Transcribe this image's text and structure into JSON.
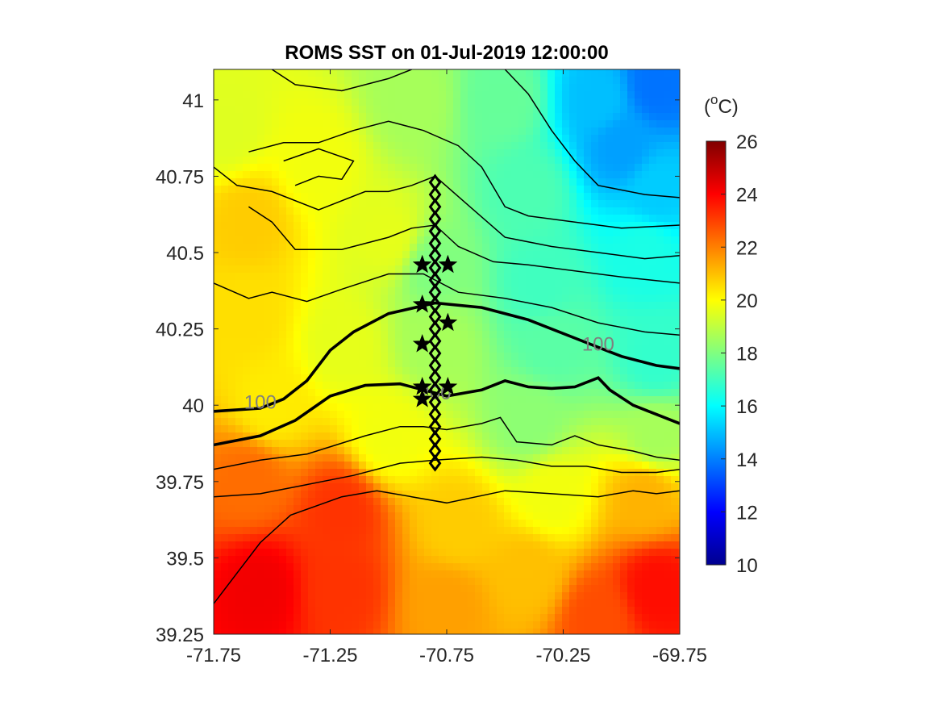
{
  "chart_data": {
    "type": "heatmap",
    "title": "ROMS SST on 01-Jul-2019 12:00:00",
    "xlabel": "",
    "ylabel": "",
    "xlim": [
      -71.75,
      -69.75
    ],
    "ylim": [
      39.25,
      41.1
    ],
    "xticks": [
      "-71.75",
      "-71.25",
      "-70.75",
      "-70.25",
      "-69.75"
    ],
    "yticks": [
      "39.25",
      "39.5",
      "39.75",
      "40",
      "40.25",
      "40.5",
      "40.75",
      "41"
    ],
    "colorbar": {
      "label": "(°C)",
      "label_base": "(",
      "label_sup": "o",
      "label_rest": "C)",
      "min": 10,
      "max": 26,
      "ticks": [
        "10",
        "12",
        "14",
        "16",
        "18",
        "20",
        "22",
        "24",
        "26"
      ],
      "colormap": "jet",
      "colors": [
        "#00008f",
        "#0000ff",
        "#0080ff",
        "#00ffff",
        "#80ff80",
        "#ffff00",
        "#ff8000",
        "#ff0000",
        "#800000"
      ]
    },
    "field_anchors": [
      {
        "lon": -71.7,
        "lat": 40.9,
        "sst": 19.5
      },
      {
        "lon": -71.6,
        "lat": 40.6,
        "sst": 20.8
      },
      {
        "lon": -71.6,
        "lat": 40.3,
        "sst": 20.5
      },
      {
        "lon": -71.3,
        "lat": 40.8,
        "sst": 19.8
      },
      {
        "lon": -71.0,
        "lat": 40.55,
        "sst": 19.6
      },
      {
        "lon": -70.9,
        "lat": 41.0,
        "sst": 18.6
      },
      {
        "lon": -70.5,
        "lat": 41.0,
        "sst": 17.6
      },
      {
        "lon": -70.1,
        "lat": 41.0,
        "sst": 15.0
      },
      {
        "lon": -69.85,
        "lat": 41.05,
        "sst": 13.8
      },
      {
        "lon": -70.0,
        "lat": 40.85,
        "sst": 14.5
      },
      {
        "lon": -69.85,
        "lat": 40.7,
        "sst": 15.2
      },
      {
        "lon": -70.4,
        "lat": 40.7,
        "sst": 17.2
      },
      {
        "lon": -69.9,
        "lat": 40.5,
        "sst": 16.4
      },
      {
        "lon": -70.35,
        "lat": 40.4,
        "sst": 17.0
      },
      {
        "lon": -70.8,
        "lat": 40.45,
        "sst": 18.0
      },
      {
        "lon": -70.3,
        "lat": 40.2,
        "sst": 17.4
      },
      {
        "lon": -69.85,
        "lat": 40.15,
        "sst": 16.8
      },
      {
        "lon": -70.8,
        "lat": 40.2,
        "sst": 18.6
      },
      {
        "lon": -71.2,
        "lat": 40.2,
        "sst": 19.6
      },
      {
        "lon": -71.5,
        "lat": 40.0,
        "sst": 20.3
      },
      {
        "lon": -70.4,
        "lat": 39.95,
        "sst": 18.2
      },
      {
        "lon": -69.85,
        "lat": 39.9,
        "sst": 18.6
      },
      {
        "lon": -71.0,
        "lat": 39.9,
        "sst": 19.8
      },
      {
        "lon": -71.6,
        "lat": 39.75,
        "sst": 22.3
      },
      {
        "lon": -71.2,
        "lat": 39.65,
        "sst": 23.2
      },
      {
        "lon": -70.7,
        "lat": 39.6,
        "sst": 20.8
      },
      {
        "lon": -70.3,
        "lat": 39.7,
        "sst": 19.8
      },
      {
        "lon": -69.9,
        "lat": 39.7,
        "sst": 21.2
      },
      {
        "lon": -71.55,
        "lat": 39.4,
        "sst": 24.2
      },
      {
        "lon": -71.2,
        "lat": 39.4,
        "sst": 23.2
      },
      {
        "lon": -70.75,
        "lat": 39.35,
        "sst": 21.5
      },
      {
        "lon": -70.4,
        "lat": 39.45,
        "sst": 21.0
      },
      {
        "lon": -69.85,
        "lat": 39.4,
        "sst": 23.8
      },
      {
        "lon": -70.1,
        "lat": 39.3,
        "sst": 22.8
      }
    ],
    "bathymetry_contours": [
      {
        "depth": 100,
        "label": "100",
        "label_positions": [
          {
            "lon": -71.55,
            "lat": 40.01
          },
          {
            "lon": -70.1,
            "lat": 40.2
          }
        ],
        "points": [
          [
            -71.75,
            39.98
          ],
          [
            -71.55,
            39.99
          ],
          [
            -71.45,
            40.02
          ],
          [
            -71.35,
            40.08
          ],
          [
            -71.25,
            40.18
          ],
          [
            -71.15,
            40.24
          ],
          [
            -71.0,
            40.3
          ],
          [
            -70.8,
            40.335
          ],
          [
            -70.6,
            40.32
          ],
          [
            -70.4,
            40.28
          ],
          [
            -70.2,
            40.22
          ],
          [
            -70.0,
            40.16
          ],
          [
            -69.85,
            40.13
          ],
          [
            -69.75,
            40.12
          ]
        ]
      },
      {
        "depth": 200,
        "label": "200",
        "label_positions": [
          {
            "lon": -70.8,
            "lat": 40.04
          }
        ],
        "points": [
          [
            -71.75,
            39.87
          ],
          [
            -71.55,
            39.9
          ],
          [
            -71.4,
            39.95
          ],
          [
            -71.25,
            40.03
          ],
          [
            -71.1,
            40.065
          ],
          [
            -70.95,
            40.07
          ],
          [
            -70.85,
            40.05
          ],
          [
            -70.75,
            40.03
          ],
          [
            -70.6,
            40.05
          ],
          [
            -70.5,
            40.08
          ],
          [
            -70.4,
            40.06
          ],
          [
            -70.3,
            40.055
          ],
          [
            -70.2,
            40.06
          ],
          [
            -70.1,
            40.09
          ],
          [
            -70.05,
            40.05
          ],
          [
            -69.95,
            40.0
          ],
          [
            -69.85,
            39.97
          ],
          [
            -69.75,
            39.94
          ]
        ]
      }
    ],
    "minor_contours": [
      [
        [
          -71.5,
          41.1
        ],
        [
          -71.4,
          41.05
        ],
        [
          -71.2,
          41.03
        ],
        [
          -71.0,
          41.07
        ],
        [
          -70.9,
          41.1
        ]
      ],
      [
        [
          -70.5,
          41.1
        ],
        [
          -70.4,
          41.02
        ],
        [
          -70.3,
          40.9
        ],
        [
          -70.2,
          40.8
        ],
        [
          -70.1,
          40.72
        ],
        [
          -69.9,
          40.69
        ],
        [
          -69.75,
          40.68
        ]
      ],
      [
        [
          -71.6,
          40.83
        ],
        [
          -71.45,
          40.86
        ],
        [
          -71.3,
          40.86
        ],
        [
          -71.15,
          40.9
        ],
        [
          -71.0,
          40.93
        ],
        [
          -70.85,
          40.9
        ],
        [
          -70.7,
          40.85
        ],
        [
          -70.6,
          40.78
        ],
        [
          -70.5,
          40.65
        ],
        [
          -70.4,
          40.62
        ],
        [
          -70.2,
          40.6
        ],
        [
          -70.0,
          40.58
        ],
        [
          -69.75,
          40.59
        ]
      ],
      [
        [
          -71.75,
          40.78
        ],
        [
          -71.65,
          40.72
        ],
        [
          -71.5,
          40.7
        ],
        [
          -71.3,
          40.64
        ],
        [
          -71.1,
          40.7
        ],
        [
          -71.0,
          40.7
        ],
        [
          -70.9,
          40.72
        ],
        [
          -70.8,
          40.75
        ],
        [
          -70.65,
          40.65
        ],
        [
          -70.5,
          40.55
        ],
        [
          -70.3,
          40.52
        ],
        [
          -70.1,
          40.5
        ],
        [
          -69.9,
          40.48
        ],
        [
          -69.75,
          40.49
        ]
      ],
      [
        [
          -71.6,
          40.65
        ],
        [
          -71.5,
          40.6
        ],
        [
          -71.4,
          40.51
        ],
        [
          -71.2,
          40.51
        ],
        [
          -71.0,
          40.55
        ],
        [
          -70.9,
          40.58
        ],
        [
          -70.8,
          40.59
        ],
        [
          -70.7,
          40.52
        ],
        [
          -70.55,
          40.47
        ],
        [
          -70.4,
          40.46
        ],
        [
          -70.2,
          40.44
        ],
        [
          -70.0,
          40.42
        ],
        [
          -69.75,
          40.4
        ]
      ],
      [
        [
          -71.75,
          40.4
        ],
        [
          -71.6,
          40.35
        ],
        [
          -71.5,
          40.37
        ],
        [
          -71.35,
          40.34
        ],
        [
          -71.2,
          40.38
        ],
        [
          -71.0,
          40.43
        ],
        [
          -70.85,
          40.43
        ],
        [
          -70.7,
          40.37
        ],
        [
          -70.5,
          40.35
        ],
        [
          -70.3,
          40.32
        ],
        [
          -70.1,
          40.27
        ],
        [
          -69.9,
          40.24
        ],
        [
          -69.75,
          40.23
        ]
      ],
      [
        [
          -71.75,
          39.79
        ],
        [
          -71.55,
          39.82
        ],
        [
          -71.35,
          39.84
        ],
        [
          -71.1,
          39.9
        ],
        [
          -70.95,
          39.93
        ],
        [
          -70.85,
          39.93
        ],
        [
          -70.75,
          39.92
        ],
        [
          -70.6,
          39.94
        ],
        [
          -70.52,
          39.96
        ],
        [
          -70.45,
          39.88
        ],
        [
          -70.3,
          39.87
        ],
        [
          -70.2,
          39.9
        ],
        [
          -70.1,
          39.87
        ],
        [
          -69.95,
          39.85
        ],
        [
          -69.85,
          39.83
        ],
        [
          -69.75,
          39.82
        ]
      ],
      [
        [
          -71.75,
          39.7
        ],
        [
          -71.55,
          39.71
        ],
        [
          -71.35,
          39.74
        ],
        [
          -71.15,
          39.77
        ],
        [
          -70.95,
          39.81
        ],
        [
          -70.8,
          39.82
        ],
        [
          -70.6,
          39.83
        ],
        [
          -70.45,
          39.82
        ],
        [
          -70.3,
          39.8
        ],
        [
          -70.15,
          39.8
        ],
        [
          -70.0,
          39.78
        ],
        [
          -69.85,
          39.78
        ],
        [
          -69.75,
          39.79
        ]
      ],
      [
        [
          -71.75,
          39.35
        ],
        [
          -71.65,
          39.45
        ],
        [
          -71.55,
          39.55
        ],
        [
          -71.42,
          39.64
        ],
        [
          -71.2,
          39.7
        ],
        [
          -71.05,
          39.72
        ],
        [
          -70.9,
          39.7
        ],
        [
          -70.75,
          39.68
        ],
        [
          -70.5,
          39.72
        ],
        [
          -70.3,
          39.71
        ],
        [
          -70.1,
          39.7
        ],
        [
          -69.95,
          39.72
        ],
        [
          -69.85,
          39.71
        ],
        [
          -69.75,
          39.72
        ]
      ],
      [
        [
          -71.4,
          40.72
        ],
        [
          -71.3,
          40.75
        ],
        [
          -71.2,
          40.74
        ],
        [
          -71.15,
          40.8
        ],
        [
          -71.3,
          40.84
        ],
        [
          -71.45,
          40.8
        ]
      ]
    ],
    "transect_stations": [
      {
        "lon": -70.8,
        "lat": 40.73
      },
      {
        "lon": -70.8,
        "lat": 40.69
      },
      {
        "lon": -70.8,
        "lat": 40.65
      },
      {
        "lon": -70.8,
        "lat": 40.61
      },
      {
        "lon": -70.8,
        "lat": 40.57
      },
      {
        "lon": -70.8,
        "lat": 40.53
      },
      {
        "lon": -70.8,
        "lat": 40.49
      },
      {
        "lon": -70.8,
        "lat": 40.45
      },
      {
        "lon": -70.8,
        "lat": 40.41
      },
      {
        "lon": -70.8,
        "lat": 40.37
      },
      {
        "lon": -70.8,
        "lat": 40.33
      },
      {
        "lon": -70.8,
        "lat": 40.29
      },
      {
        "lon": -70.8,
        "lat": 40.25
      },
      {
        "lon": -70.8,
        "lat": 40.21
      },
      {
        "lon": -70.8,
        "lat": 40.17
      },
      {
        "lon": -70.8,
        "lat": 40.13
      },
      {
        "lon": -70.8,
        "lat": 40.09
      },
      {
        "lon": -70.8,
        "lat": 40.05
      },
      {
        "lon": -70.8,
        "lat": 40.01
      },
      {
        "lon": -70.8,
        "lat": 39.97
      },
      {
        "lon": -70.8,
        "lat": 39.93
      },
      {
        "lon": -70.8,
        "lat": 39.89
      },
      {
        "lon": -70.8,
        "lat": 39.85
      },
      {
        "lon": -70.8,
        "lat": 39.81
      }
    ],
    "star_stations": [
      {
        "lon": -70.855,
        "lat": 40.46
      },
      {
        "lon": -70.745,
        "lat": 40.46
      },
      {
        "lon": -70.855,
        "lat": 40.33
      },
      {
        "lon": -70.745,
        "lat": 40.27
      },
      {
        "lon": -70.855,
        "lat": 40.2
      },
      {
        "lon": -70.855,
        "lat": 40.06
      },
      {
        "lon": -70.745,
        "lat": 40.06
      },
      {
        "lon": -70.855,
        "lat": 40.02
      }
    ],
    "grid": false,
    "legend": "none"
  }
}
